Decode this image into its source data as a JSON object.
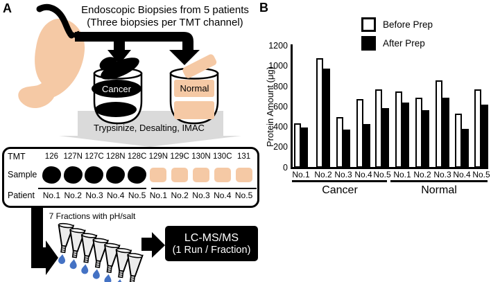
{
  "panel_a": {
    "label": "A",
    "title_line1": "Endoscopic Biopsies from 5 patients",
    "title_line2": "(Three biopsies per TMT channel)",
    "cancer_cup_label": "Cancer",
    "normal_cup_label": "Normal",
    "process_label": "Trypsinize, Desalting, IMAC",
    "tmt_table": {
      "row_headers": [
        "TMT",
        "Sample",
        "Patient"
      ],
      "channels": [
        "126",
        "127N",
        "127C",
        "128N",
        "128C",
        "129N",
        "129C",
        "130N",
        "130C",
        "131"
      ],
      "sample_types": [
        "cancer",
        "cancer",
        "cancer",
        "cancer",
        "cancer",
        "normal",
        "normal",
        "normal",
        "normal",
        "normal"
      ],
      "patients": [
        "No.1",
        "No.2",
        "No.3",
        "No.4",
        "No.5",
        "No.1",
        "No.2",
        "No.3",
        "No.4",
        "No.5"
      ]
    },
    "fraction_count": 7,
    "fractions_label": "7 Fractions with pH/salt",
    "lcms_line1": "LC-MS/MS",
    "lcms_line2": "(1 Run / Fraction)"
  },
  "panel_b": {
    "label": "B",
    "legend": [
      {
        "label": "Before Prep",
        "fill": "#FFFFFF"
      },
      {
        "label": "After Prep",
        "fill": "#000000"
      }
    ]
  },
  "chart_data": {
    "type": "bar",
    "title": "",
    "xlabel": "",
    "ylabel": "Protein Amount (μg)",
    "ylim": [
      0,
      1200
    ],
    "yticks": [
      0,
      200,
      400,
      600,
      800,
      1000,
      1200
    ],
    "grid": false,
    "legend_position": "top",
    "groups": [
      "Cancer",
      "Normal"
    ],
    "categories": [
      "No.1",
      "No.2",
      "No.3",
      "No.4",
      "No.5",
      "No.1",
      "No.2",
      "No.3",
      "No.4",
      "No.5"
    ],
    "series": [
      {
        "name": "Before Prep",
        "values": [
          440,
          1080,
          500,
          680,
          775,
          755,
          690,
          860,
          530,
          770
        ]
      },
      {
        "name": "After Prep",
        "values": [
          395,
          980,
          375,
          430,
          585,
          640,
          570,
          690,
          385,
          625
        ]
      }
    ]
  },
  "colors": {
    "peach": "#F5C9A5",
    "gray_banner": "#DADADA",
    "drop_blue": "#4472C4",
    "black": "#000000",
    "white": "#FFFFFF"
  }
}
